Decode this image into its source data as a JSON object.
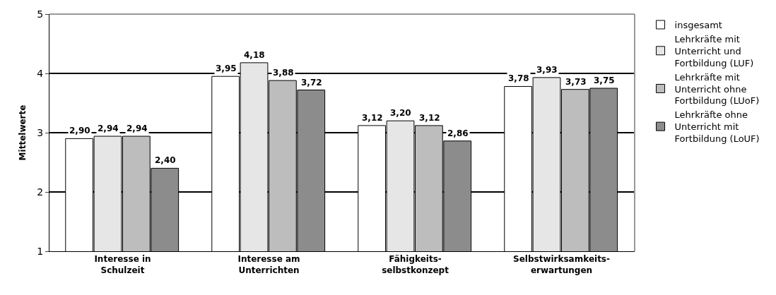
{
  "chart_data": {
    "type": "bar",
    "ylabel": "Mittelwerte",
    "categories": [
      "Interesse in Schulzeit",
      "Interesse am Unterrichten",
      "Fähigkeits-selbstkonzept",
      "Selbstwirksamkeits-erwartungen"
    ],
    "series": [
      {
        "name": "insgesamt",
        "color": "#ffffff",
        "values": [
          2.9,
          3.95,
          3.12,
          3.78
        ],
        "value_labels": [
          "2,90",
          "3,95",
          "3,12",
          "3,78"
        ]
      },
      {
        "name": "Lehrkräfte mit Unterricht und Fortbildung (LUF)",
        "color": "#e6e6e6",
        "values": [
          2.94,
          4.18,
          3.2,
          3.93
        ],
        "value_labels": [
          "2,94",
          "4,18",
          "3,20",
          "3,93"
        ]
      },
      {
        "name": "Lehrkräfte mit Unterricht ohne Fortbildung (LUoF)",
        "color": "#bdbdbd",
        "values": [
          2.94,
          3.88,
          3.12,
          3.73
        ],
        "value_labels": [
          "2,94",
          "3,88",
          "3,12",
          "3,73"
        ]
      },
      {
        "name": "Lehrkräfte ohne Unterricht mit Fortbildung (LoUF)",
        "color": "#8c8c8c",
        "values": [
          2.4,
          3.72,
          2.86,
          3.75
        ],
        "value_labels": [
          "2,40",
          "3,72",
          "2,86",
          "3,75"
        ]
      }
    ],
    "ylim": [
      1,
      5
    ],
    "yticks": [
      1,
      2,
      3,
      4,
      5
    ],
    "grid": "y",
    "legend": "right"
  }
}
